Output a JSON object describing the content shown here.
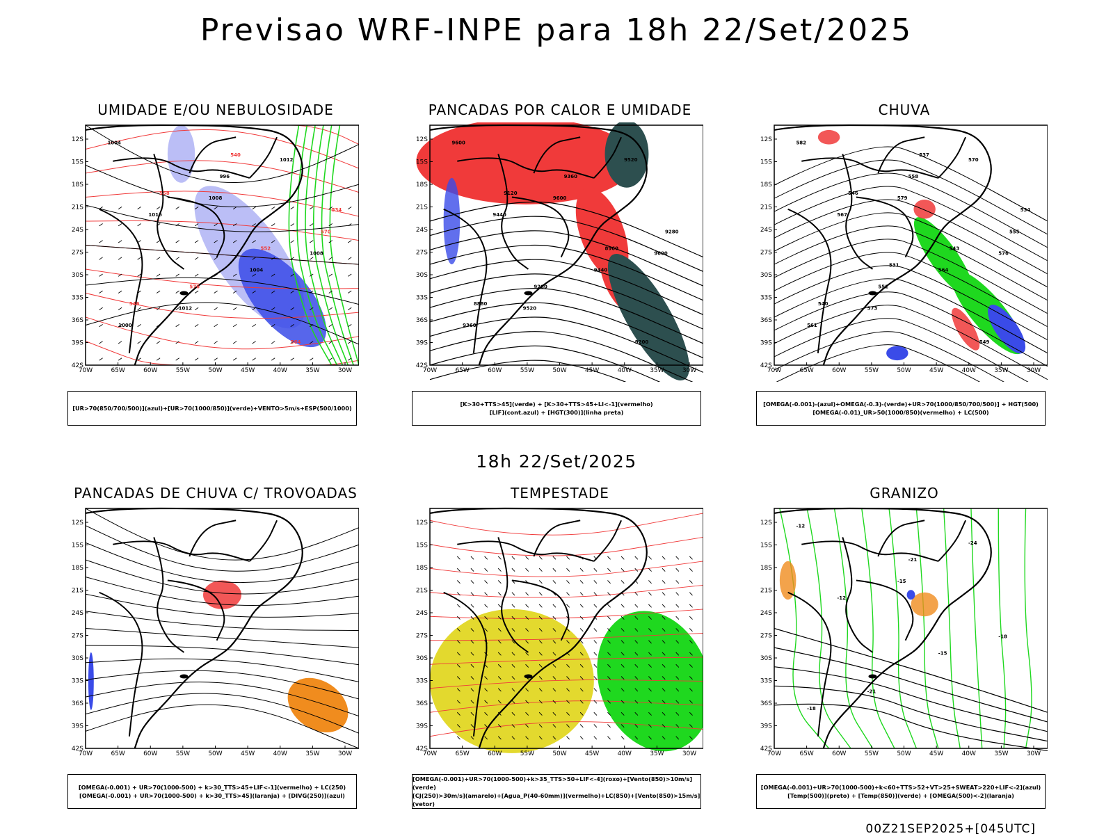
{
  "title": "Previsao WRF-INPE  para 18h 22/Set/2025",
  "subtitle": "18h 22/Set/2025",
  "footer": "00Z21SEP2025+[045UTC]",
  "axes": {
    "lat_ticks": [
      "12S",
      "15S",
      "18S",
      "21S",
      "24S",
      "27S",
      "30S",
      "33S",
      "36S",
      "39S",
      "42S"
    ],
    "lon_ticks": [
      "70W",
      "65W",
      "60W",
      "55W",
      "50W",
      "45W",
      "40W",
      "35W",
      "30W"
    ]
  },
  "panels": [
    {
      "title": "UMIDADE E/OU NEBULOSIDADE",
      "legend": [
        "[UR>70(850/700/500)](azul)+[UR>70(1000/850)](verde)+VENTO>5m/s+ESP(500/1000)"
      ],
      "contour_labels": [
        "1004",
        "1008",
        "1008",
        "1012",
        "1012",
        "1016",
        "1004",
        "1000",
        "996",
        "570",
        "576",
        "564",
        "558",
        "552",
        "546",
        "540",
        "534"
      ]
    },
    {
      "title": "PANCADAS POR CALOR E UMIDADE",
      "legend": [
        "[K>30+TTS>45](verde) + [K>30+TTS>45+LI<-1](vermelho)",
        "[LIF](cont.azul) + [HGT(300)](linha preta)"
      ],
      "contour_labels": [
        "9600",
        "9600",
        "9600",
        "9520",
        "9520",
        "9440",
        "9440",
        "9360",
        "9360",
        "9280",
        "9280",
        "9200",
        "9120",
        "8960",
        "8880"
      ]
    },
    {
      "title": "CHUVA",
      "legend": [
        "[OMEGA(-0.001)-(azul)+OMEGA(-0.3)-(verde)+UR>70(1000/850/700/500)] + HGT(500)",
        "[OMEGA(-0.01)_UR>50(1000/850)(vermelho) + LC(500)"
      ],
      "contour_labels": [
        "582",
        "579",
        "576",
        "573",
        "570",
        "567",
        "564",
        "561",
        "558",
        "555",
        "552",
        "549",
        "546",
        "543",
        "540",
        "537",
        "534",
        "531"
      ]
    },
    {
      "title": "PANCADAS DE CHUVA C/ TROVOADAS",
      "legend": [
        "[OMEGA(-0.001) + UR>70(1000-500) + k>30_TTS>45+LIF<-1](vermelho) + LC(250)",
        "[OMEGA(-0.001) + UR>70(1000-500) + k>30_TTS>45](laranja) + [DIVG(250)](azul)"
      ],
      "contour_labels": []
    },
    {
      "title": "TEMPESTADE",
      "legend": [
        "[OMEGA(-0.001)+UR>70(1000-500)+k>35_TTS>50+LIF<-4](roxo)+[Vento(850)>10m/s](verde)",
        "[CJ(250)>30m/s](amarelo)+[Agua_P(40-60mm)](vermelho)+LC(850)+[Vento(850)>15m/s](vetor)"
      ],
      "contour_labels": []
    },
    {
      "title": "GRANIZO",
      "legend": [
        "[OMEGA(-0.001)+UR>70(1000-500)+k<60+TTS>52+VT>25+SWEAT>220+LIF<-2](azul)",
        "[Temp(500)](preto) + [Temp(850)](verde) + [OMEGA(500)<-2](laranja)"
      ],
      "contour_labels": [
        "-12",
        "-15",
        "-18",
        "-21",
        "-24",
        "-12",
        "-15",
        "-18",
        "-21"
      ]
    }
  ],
  "colors": {
    "blue": "#3a4be8",
    "lightblue": "#b4b7f5",
    "green": "#1fd81f",
    "red": "#f03a3a",
    "darkteal": "#2d4f4f",
    "yellow": "#e3d92e",
    "orange": "#f08c1e",
    "black": "#000000"
  }
}
